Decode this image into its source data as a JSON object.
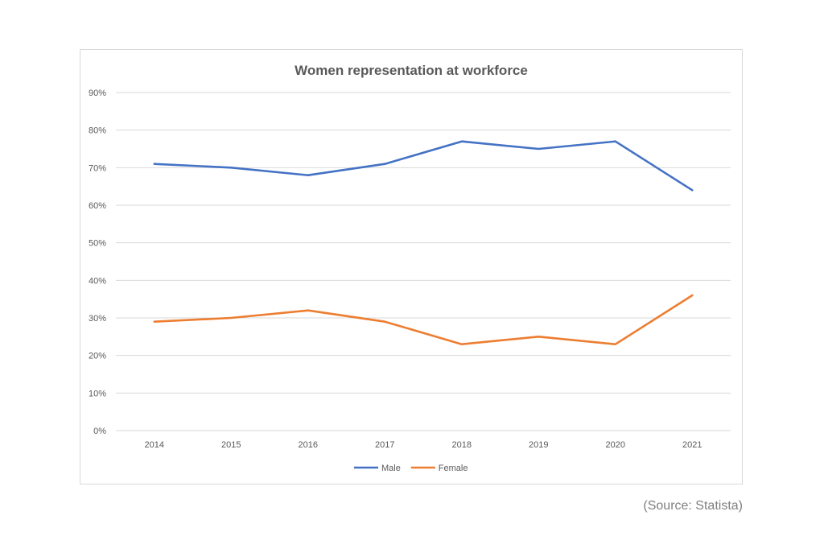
{
  "chart_data": {
    "type": "line",
    "title": "Women representation at workforce",
    "categories": [
      "2014",
      "2015",
      "2016",
      "2017",
      "2018",
      "2019",
      "2020",
      "2021"
    ],
    "series": [
      {
        "name": "Male",
        "color": "#4472c4",
        "values": [
          71,
          70,
          68,
          71,
          77,
          75,
          77,
          64
        ]
      },
      {
        "name": "Female",
        "color": "#ed7d31",
        "values": [
          29,
          30,
          32,
          29,
          23,
          25,
          23,
          36
        ]
      }
    ],
    "ylim": [
      0,
      90
    ],
    "yticks": [
      0,
      10,
      20,
      30,
      40,
      50,
      60,
      70,
      80,
      90
    ],
    "ytick_suffix": "%",
    "grid": true,
    "legend_position": "bottom"
  },
  "source_note": "(Source: Statista)"
}
